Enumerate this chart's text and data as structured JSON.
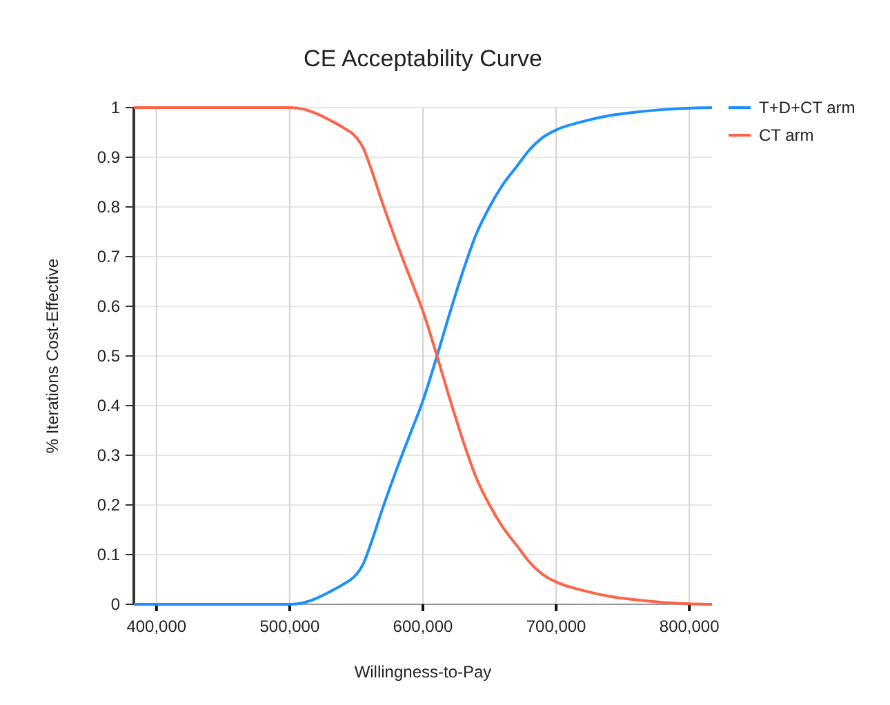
{
  "chart_data": {
    "type": "line",
    "title": "CE Acceptability Curve",
    "xlabel": "Willingness-to-Pay",
    "ylabel": "% Iterations Cost-Effective",
    "x": [
      383000,
      500000,
      510000,
      520000,
      530000,
      540000,
      550000,
      555000,
      560000,
      570000,
      580000,
      590000,
      600000,
      610000,
      620000,
      630000,
      640000,
      650000,
      660000,
      670000,
      680000,
      690000,
      700000,
      720000,
      740000,
      760000,
      780000,
      800000,
      817000
    ],
    "series": [
      {
        "name": "T+D+CT arm",
        "color": "#1a90ff",
        "values": [
          0,
          0,
          0.003,
          0.012,
          0.025,
          0.04,
          0.06,
          0.08,
          0.115,
          0.195,
          0.27,
          0.34,
          0.41,
          0.495,
          0.585,
          0.67,
          0.745,
          0.8,
          0.845,
          0.88,
          0.915,
          0.94,
          0.955,
          0.972,
          0.984,
          0.991,
          0.996,
          0.999,
          1
        ]
      },
      {
        "name": "CT arm",
        "color": "#ff6347",
        "values": [
          1,
          1,
          0.997,
          0.988,
          0.975,
          0.96,
          0.94,
          0.92,
          0.885,
          0.805,
          0.73,
          0.66,
          0.59,
          0.505,
          0.415,
          0.33,
          0.255,
          0.2,
          0.155,
          0.12,
          0.085,
          0.06,
          0.045,
          0.028,
          0.016,
          0.009,
          0.004,
          0.001,
          0
        ]
      }
    ],
    "xlim": [
      383000,
      817000
    ],
    "xticks": [
      {
        "value": 400000,
        "label": "400,000"
      },
      {
        "value": 500000,
        "label": "500,000"
      },
      {
        "value": 600000,
        "label": "600,000"
      },
      {
        "value": 700000,
        "label": "700,000"
      },
      {
        "value": 800000,
        "label": "800,000"
      }
    ],
    "ylim": [
      0,
      1
    ],
    "yticks": [
      0,
      0.1,
      0.2,
      0.3,
      0.4,
      0.5,
      0.6,
      0.7,
      0.8,
      0.9,
      1
    ],
    "grid": true,
    "legend": "top right",
    "marker": "none",
    "line_style": "solid"
  }
}
